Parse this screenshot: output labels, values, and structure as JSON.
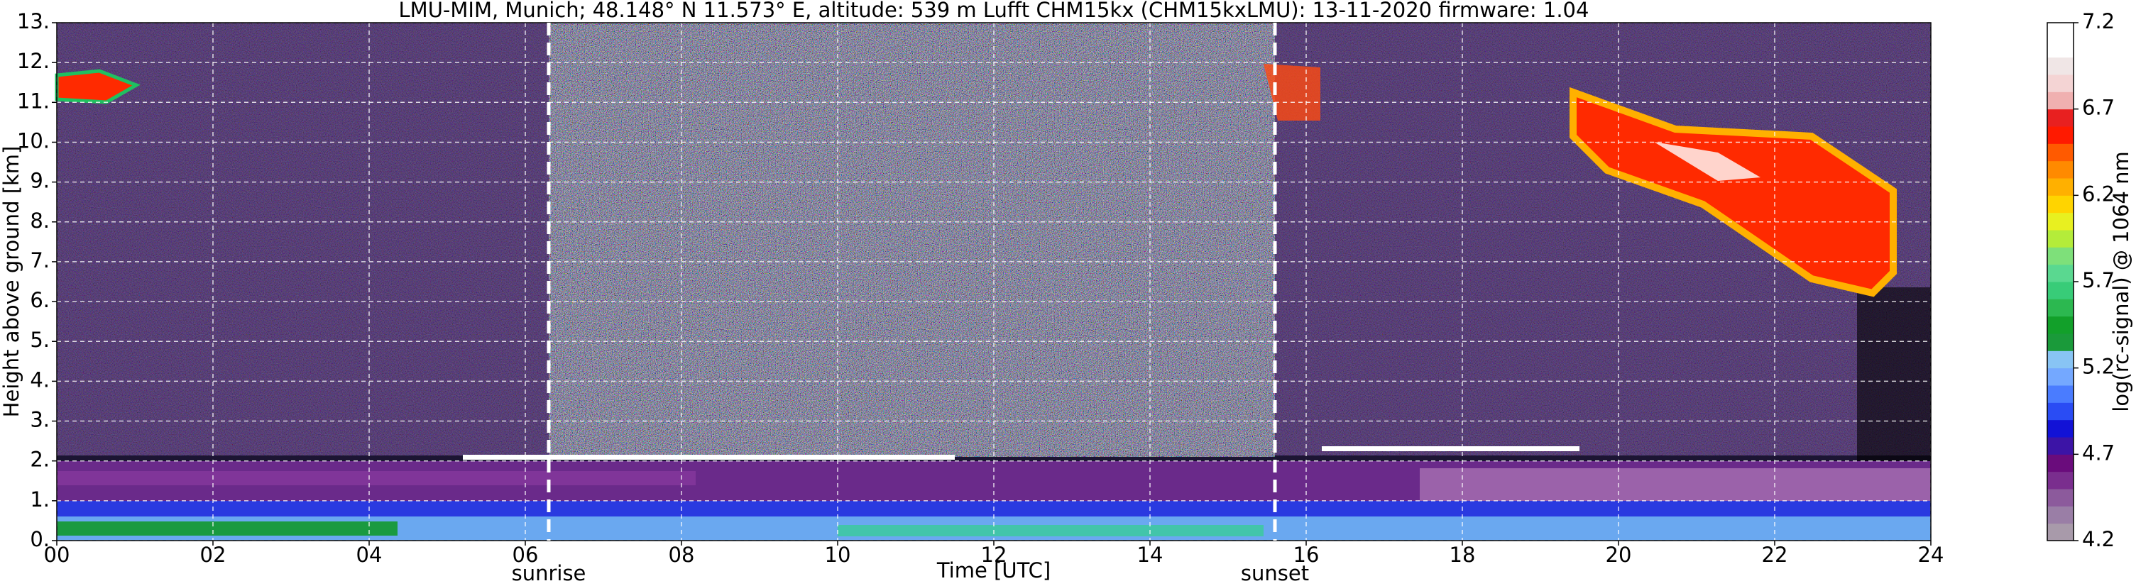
{
  "chart_data": {
    "type": "heatmap",
    "title": "LMU-MIM, Munich; 48.148° N 11.573° E, altitude: 539 m    Lufft CHM15kx (CHM15kxLMU): 13-11-2020    firmware: 1.04",
    "x_label": "Time [UTC]",
    "y_label": "Height above ground [km]",
    "xlim": [
      0,
      24
    ],
    "xticks": [
      {
        "value": 0,
        "label": "00"
      },
      {
        "value": 2,
        "label": "02"
      },
      {
        "value": 4,
        "label": "04"
      },
      {
        "value": 6,
        "label": "06"
      },
      {
        "value": 8,
        "label": "08"
      },
      10,
      12,
      14,
      16,
      18,
      20,
      22,
      24
    ],
    "ylim": [
      0,
      13
    ],
    "yticks": [
      {
        "value": 0,
        "label": "0."
      },
      {
        "value": 1,
        "label": "1."
      },
      {
        "value": 2,
        "label": "2."
      },
      {
        "value": 3,
        "label": "3."
      },
      {
        "value": 4,
        "label": "4."
      },
      {
        "value": 5,
        "label": "5."
      },
      {
        "value": 6,
        "label": "6."
      },
      {
        "value": 7,
        "label": "7."
      },
      {
        "value": 8,
        "label": "8."
      },
      {
        "value": 9,
        "label": "9."
      },
      {
        "value": 10,
        "label": "10."
      },
      {
        "value": 11,
        "label": "11."
      },
      {
        "value": 12,
        "label": "12."
      },
      {
        "value": 13,
        "label": "13."
      }
    ],
    "grid": true,
    "annotations": [
      {
        "text": "sunrise",
        "x": 6.3
      },
      {
        "text": "sunset",
        "x": 15.6
      }
    ],
    "colorbar": {
      "label": "log(rc-signal) @ 1064 nm",
      "lim": [
        4.2,
        7.2
      ],
      "ticks": [
        4.2,
        4.7,
        5.2,
        5.7,
        6.2,
        6.7,
        7.2
      ],
      "colors": [
        "#a89aaa",
        "#9a7ea6",
        "#8c5a9c",
        "#7a2e8e",
        "#6a0c7c",
        "#3c14a6",
        "#1212d6",
        "#2a4cf4",
        "#4a7cff",
        "#74a8ff",
        "#88c4f4",
        "#1a9a3a",
        "#12a02a",
        "#2cb850",
        "#38cc78",
        "#5ad890",
        "#7ee07a",
        "#b4ec3a",
        "#e8f020",
        "#ffd400",
        "#ffb000",
        "#ff8a00",
        "#ff5a00",
        "#ff1a00",
        "#e82020",
        "#f0b0b0",
        "#f4d4d4",
        "#f0e6e6",
        "#ffffff",
        "#ffffff"
      ]
    }
  }
}
